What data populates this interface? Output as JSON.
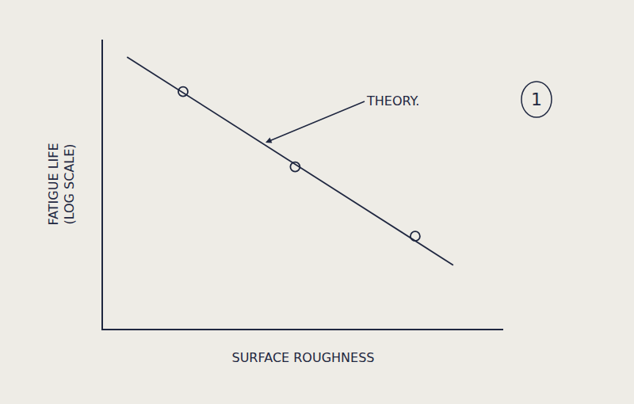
{
  "chart_data": {
    "type": "line",
    "xlabel": "SURFACE ROUGHNESS",
    "ylabel": "FATIGUE LIFE\n(LOG SCALE)",
    "xlim": [
      0,
      10
    ],
    "ylim": [
      0,
      10
    ],
    "tick_labels": false,
    "grid": false,
    "series": [
      {
        "x": [
          0.6,
          8.75
        ],
        "values": [
          9.4,
          2.2
        ],
        "color": "#1f2740",
        "marker": "none",
        "line_style": "solid"
      },
      {
        "x": [
          2.0,
          4.8,
          7.8
        ],
        "values": [
          8.2,
          5.6,
          3.2
        ],
        "color": "#1f2740",
        "marker": "circle-open",
        "line_style": "none"
      }
    ],
    "annotations": [
      {
        "text": "THEORY.",
        "x": 4.06,
        "y": 6.44
      },
      {
        "text": "1"
      }
    ]
  }
}
